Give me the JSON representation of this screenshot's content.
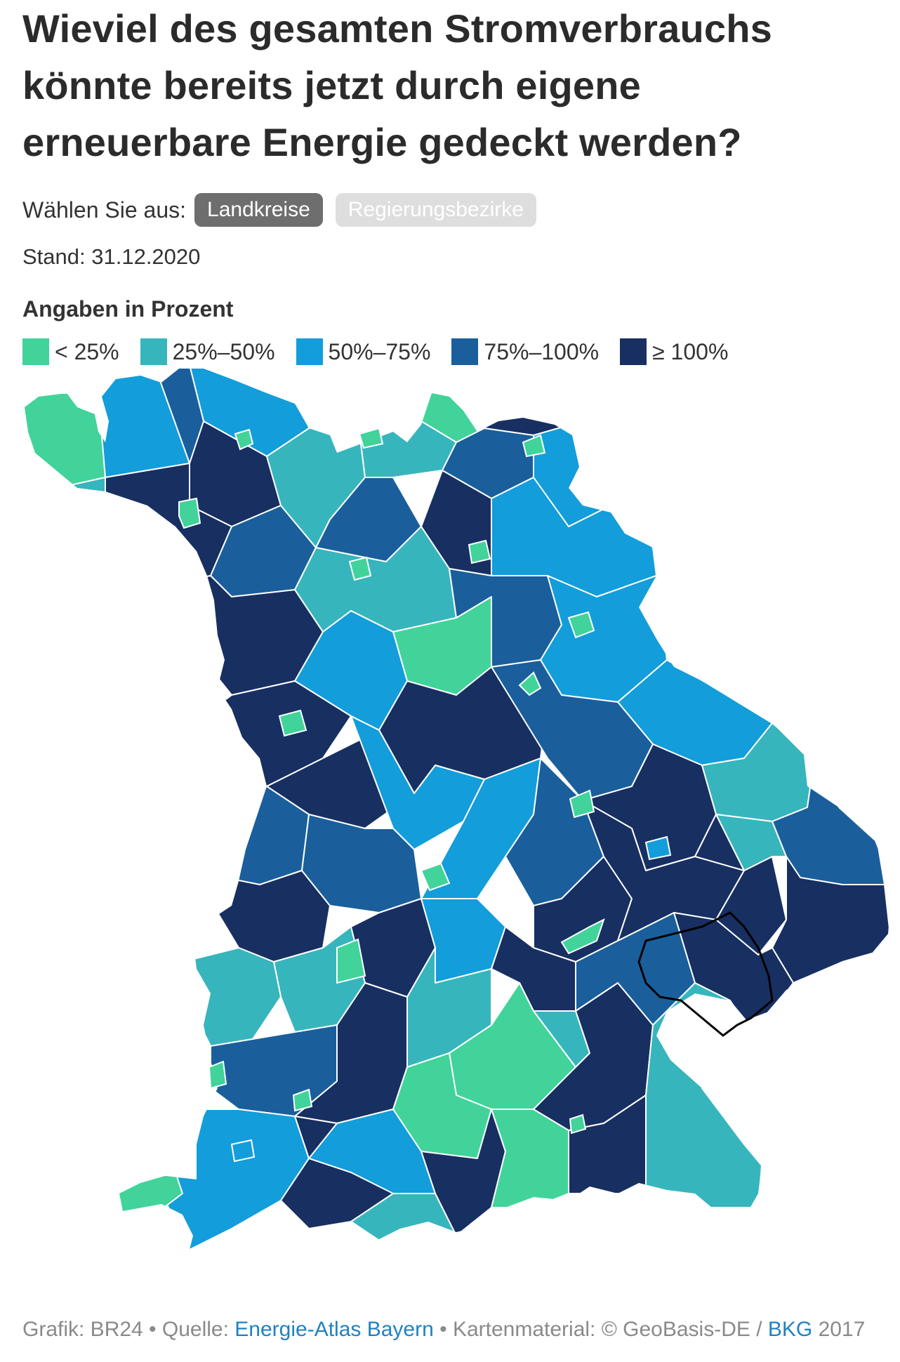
{
  "title": "Wieviel des gesamten Stromverbrauchs könnte bereits jetzt durch eigene erneuerbare Energie gedeckt werden?",
  "selector": {
    "label": "Wählen Sie aus:",
    "options": [
      "Landkreise",
      "Regierungsbezirke"
    ],
    "selected": "Landkreise"
  },
  "stand": "Stand: 31.12.2020",
  "legend": {
    "title": "Angaben in Prozent",
    "items": [
      {
        "label": "< 25%",
        "color": "#41d39a"
      },
      {
        "label": "25%–50%",
        "color": "#37b5bd"
      },
      {
        "label": "50%–75%",
        "color": "#139dda"
      },
      {
        "label": "75%–100%",
        "color": "#1a5f9c"
      },
      {
        "label": "≥ 100%",
        "color": "#182f62"
      }
    ]
  },
  "map": {
    "region": "Bayern",
    "class_colors": [
      "#41d39a",
      "#37b5bd",
      "#139dda",
      "#1a5f9c",
      "#182f62"
    ]
  },
  "footer": {
    "prefix": "Grafik: BR24 • Quelle: ",
    "source_link": "Energie-Atlas Bayern",
    "middle": " • Kartenmaterial: © GeoBasis-DE / ",
    "bkg_link": "BKG",
    "suffix": " 2017"
  }
}
